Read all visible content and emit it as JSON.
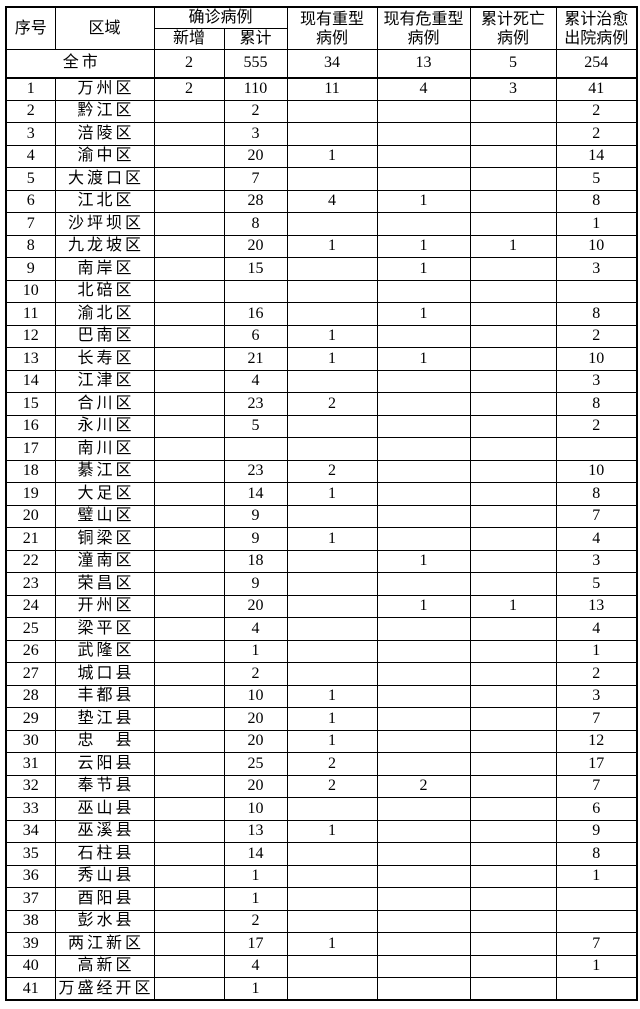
{
  "table": {
    "headers": {
      "seq": "序号",
      "region": "区域",
      "confirmed_group": "确诊病例",
      "confirmed_new": "新增",
      "confirmed_total": "累计",
      "severe": "现有重型\n病例",
      "critical": "现有危重型\n病例",
      "deaths": "累计死亡\n病例",
      "cured": "累计治愈\n出院病例"
    },
    "total_row": {
      "region": "全市",
      "new": "2",
      "cumulative": "555",
      "severe": "34",
      "critical": "13",
      "deaths": "5",
      "cured": "254"
    },
    "rows": [
      {
        "seq": "1",
        "region": "万州区",
        "new": "2",
        "cumulative": "110",
        "severe": "11",
        "critical": "4",
        "deaths": "3",
        "cured": "41"
      },
      {
        "seq": "2",
        "region": "黔江区",
        "new": "",
        "cumulative": "2",
        "severe": "",
        "critical": "",
        "deaths": "",
        "cured": "2"
      },
      {
        "seq": "3",
        "region": "涪陵区",
        "new": "",
        "cumulative": "3",
        "severe": "",
        "critical": "",
        "deaths": "",
        "cured": "2"
      },
      {
        "seq": "4",
        "region": "渝中区",
        "new": "",
        "cumulative": "20",
        "severe": "1",
        "critical": "",
        "deaths": "",
        "cured": "14"
      },
      {
        "seq": "5",
        "region": "大渡口区",
        "new": "",
        "cumulative": "7",
        "severe": "",
        "critical": "",
        "deaths": "",
        "cured": "5"
      },
      {
        "seq": "6",
        "region": "江北区",
        "new": "",
        "cumulative": "28",
        "severe": "4",
        "critical": "1",
        "deaths": "",
        "cured": "8"
      },
      {
        "seq": "7",
        "region": "沙坪坝区",
        "new": "",
        "cumulative": "8",
        "severe": "",
        "critical": "",
        "deaths": "",
        "cured": "1"
      },
      {
        "seq": "8",
        "region": "九龙坡区",
        "new": "",
        "cumulative": "20",
        "severe": "1",
        "critical": "1",
        "deaths": "1",
        "cured": "10"
      },
      {
        "seq": "9",
        "region": "南岸区",
        "new": "",
        "cumulative": "15",
        "severe": "",
        "critical": "1",
        "deaths": "",
        "cured": "3"
      },
      {
        "seq": "10",
        "region": "北碚区",
        "new": "",
        "cumulative": "",
        "severe": "",
        "critical": "",
        "deaths": "",
        "cured": ""
      },
      {
        "seq": "11",
        "region": "渝北区",
        "new": "",
        "cumulative": "16",
        "severe": "",
        "critical": "1",
        "deaths": "",
        "cured": "8"
      },
      {
        "seq": "12",
        "region": "巴南区",
        "new": "",
        "cumulative": "6",
        "severe": "1",
        "critical": "",
        "deaths": "",
        "cured": "2"
      },
      {
        "seq": "13",
        "region": "长寿区",
        "new": "",
        "cumulative": "21",
        "severe": "1",
        "critical": "1",
        "deaths": "",
        "cured": "10"
      },
      {
        "seq": "14",
        "region": "江津区",
        "new": "",
        "cumulative": "4",
        "severe": "",
        "critical": "",
        "deaths": "",
        "cured": "3"
      },
      {
        "seq": "15",
        "region": "合川区",
        "new": "",
        "cumulative": "23",
        "severe": "2",
        "critical": "",
        "deaths": "",
        "cured": "8"
      },
      {
        "seq": "16",
        "region": "永川区",
        "new": "",
        "cumulative": "5",
        "severe": "",
        "critical": "",
        "deaths": "",
        "cured": "2"
      },
      {
        "seq": "17",
        "region": "南川区",
        "new": "",
        "cumulative": "",
        "severe": "",
        "critical": "",
        "deaths": "",
        "cured": ""
      },
      {
        "seq": "18",
        "region": "綦江区",
        "new": "",
        "cumulative": "23",
        "severe": "2",
        "critical": "",
        "deaths": "",
        "cured": "10"
      },
      {
        "seq": "19",
        "region": "大足区",
        "new": "",
        "cumulative": "14",
        "severe": "1",
        "critical": "",
        "deaths": "",
        "cured": "8"
      },
      {
        "seq": "20",
        "region": "璧山区",
        "new": "",
        "cumulative": "9",
        "severe": "",
        "critical": "",
        "deaths": "",
        "cured": "7"
      },
      {
        "seq": "21",
        "region": "铜梁区",
        "new": "",
        "cumulative": "9",
        "severe": "1",
        "critical": "",
        "deaths": "",
        "cured": "4"
      },
      {
        "seq": "22",
        "region": "潼南区",
        "new": "",
        "cumulative": "18",
        "severe": "",
        "critical": "1",
        "deaths": "",
        "cured": "3"
      },
      {
        "seq": "23",
        "region": "荣昌区",
        "new": "",
        "cumulative": "9",
        "severe": "",
        "critical": "",
        "deaths": "",
        "cured": "5"
      },
      {
        "seq": "24",
        "region": "开州区",
        "new": "",
        "cumulative": "20",
        "severe": "",
        "critical": "1",
        "deaths": "1",
        "cured": "13"
      },
      {
        "seq": "25",
        "region": "梁平区",
        "new": "",
        "cumulative": "4",
        "severe": "",
        "critical": "",
        "deaths": "",
        "cured": "4"
      },
      {
        "seq": "26",
        "region": "武隆区",
        "new": "",
        "cumulative": "1",
        "severe": "",
        "critical": "",
        "deaths": "",
        "cured": "1"
      },
      {
        "seq": "27",
        "region": "城口县",
        "new": "",
        "cumulative": "2",
        "severe": "",
        "critical": "",
        "deaths": "",
        "cured": "2"
      },
      {
        "seq": "28",
        "region": "丰都县",
        "new": "",
        "cumulative": "10",
        "severe": "1",
        "critical": "",
        "deaths": "",
        "cured": "3"
      },
      {
        "seq": "29",
        "region": "垫江县",
        "new": "",
        "cumulative": "20",
        "severe": "1",
        "critical": "",
        "deaths": "",
        "cured": "7"
      },
      {
        "seq": "30",
        "region": "忠　县",
        "new": "",
        "cumulative": "20",
        "severe": "1",
        "critical": "",
        "deaths": "",
        "cured": "12"
      },
      {
        "seq": "31",
        "region": "云阳县",
        "new": "",
        "cumulative": "25",
        "severe": "2",
        "critical": "",
        "deaths": "",
        "cured": "17"
      },
      {
        "seq": "32",
        "region": "奉节县",
        "new": "",
        "cumulative": "20",
        "severe": "2",
        "critical": "2",
        "deaths": "",
        "cured": "7"
      },
      {
        "seq": "33",
        "region": "巫山县",
        "new": "",
        "cumulative": "10",
        "severe": "",
        "critical": "",
        "deaths": "",
        "cured": "6"
      },
      {
        "seq": "34",
        "region": "巫溪县",
        "new": "",
        "cumulative": "13",
        "severe": "1",
        "critical": "",
        "deaths": "",
        "cured": "9"
      },
      {
        "seq": "35",
        "region": "石柱县",
        "new": "",
        "cumulative": "14",
        "severe": "",
        "critical": "",
        "deaths": "",
        "cured": "8"
      },
      {
        "seq": "36",
        "region": "秀山县",
        "new": "",
        "cumulative": "1",
        "severe": "",
        "critical": "",
        "deaths": "",
        "cured": "1"
      },
      {
        "seq": "37",
        "region": "酉阳县",
        "new": "",
        "cumulative": "1",
        "severe": "",
        "critical": "",
        "deaths": "",
        "cured": ""
      },
      {
        "seq": "38",
        "region": "彭水县",
        "new": "",
        "cumulative": "2",
        "severe": "",
        "critical": "",
        "deaths": "",
        "cured": ""
      },
      {
        "seq": "39",
        "region": "两江新区",
        "new": "",
        "cumulative": "17",
        "severe": "1",
        "critical": "",
        "deaths": "",
        "cured": "7"
      },
      {
        "seq": "40",
        "region": "高新区",
        "new": "",
        "cumulative": "4",
        "severe": "",
        "critical": "",
        "deaths": "",
        "cured": "1"
      },
      {
        "seq": "41",
        "region": "万盛经开区",
        "new": "",
        "cumulative": "1",
        "severe": "",
        "critical": "",
        "deaths": "",
        "cured": ""
      }
    ]
  }
}
